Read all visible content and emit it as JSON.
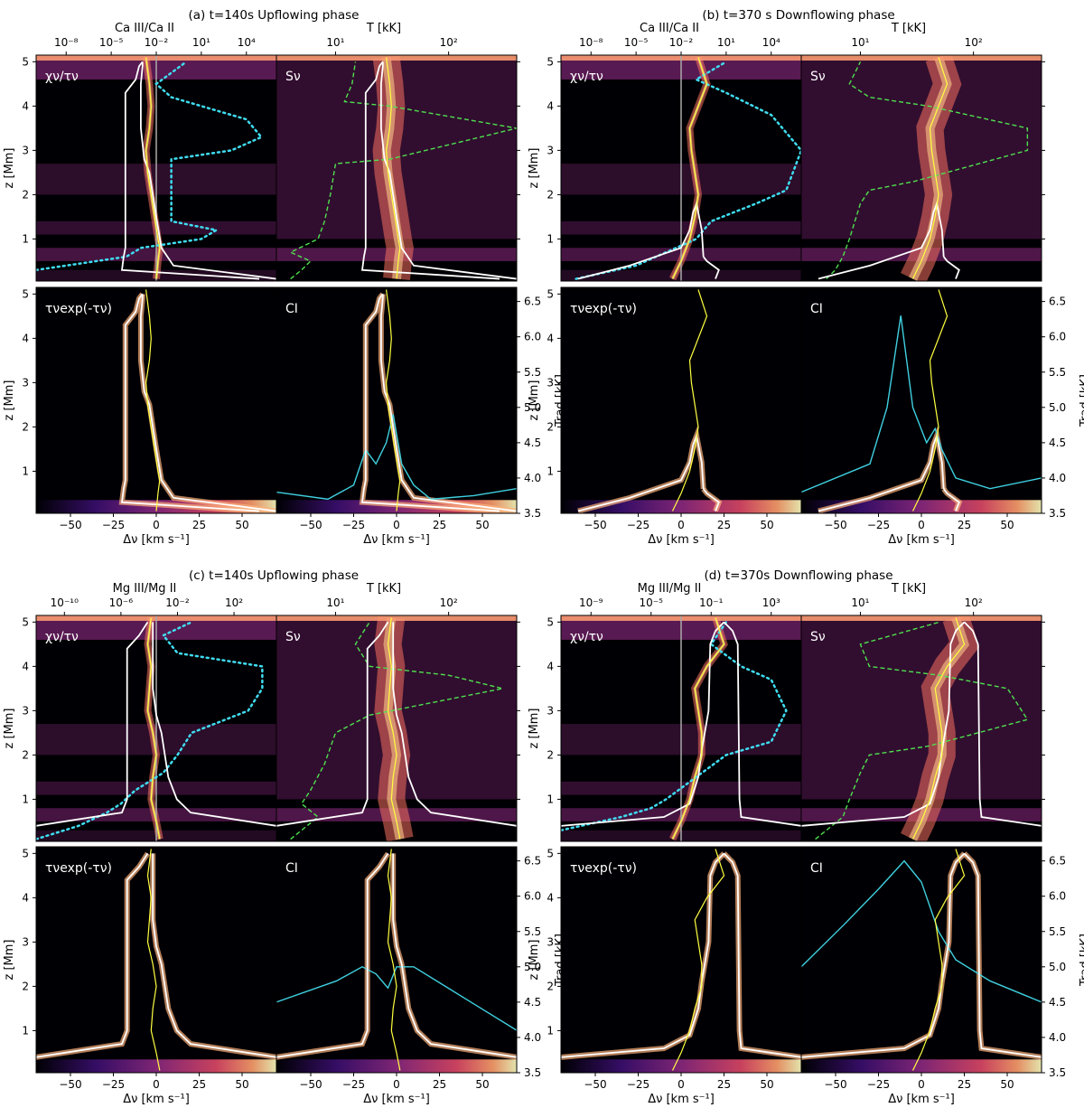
{
  "figure": {
    "blocks": [
      {
        "title": "(a) t=140s Upflowing phase",
        "ion_label": "Ca III/Ca II",
        "top_ticks": [
          "10⁻⁸",
          "10⁻⁵",
          "10⁻²",
          "10¹",
          "10⁴"
        ]
      },
      {
        "title": "(b) t=370 s Downflowing phase",
        "ion_label": "Ca III/Ca II",
        "top_ticks": [
          "10⁻⁸",
          "10⁻⁵",
          "10⁻²",
          "10¹",
          "10⁴"
        ]
      },
      {
        "title": "(c) t=140s Upflowing phase",
        "ion_label": "Mg III/Mg II",
        "top_ticks": [
          "10⁻¹⁰",
          "10⁻⁶",
          "10⁻²",
          "10²"
        ]
      },
      {
        "title": "(d) t=370s Downflowing phase",
        "ion_label": "Mg III/Mg II",
        "top_ticks": [
          "10⁻⁹",
          "10⁻⁵",
          "10⁻¹",
          "10³"
        ]
      }
    ],
    "panel_labels": [
      "χν/τν",
      "Sν",
      "τνexp(-τν)",
      "CI"
    ],
    "temp_label": "T [kK]",
    "temp_ticks": [
      "10¹",
      "10²"
    ],
    "ylabel": "z [Mm]",
    "xlabel": "Δν [km s⁻¹]",
    "trad_label": "Trad [kK]",
    "colors": {
      "velocity": "#ffff40",
      "tau_unity": "#ffffff",
      "temperature": "#4ee04e",
      "ion_ratio": "#3fdcf0",
      "line_profile": "#3fd0e0",
      "map_dark": "#000004",
      "map_bright": "#fcfdbf"
    }
  },
  "chart_data": {
    "type": "heatmap",
    "x_axis": {
      "label": "Δν [km s⁻¹]",
      "range": [
        -70,
        70
      ],
      "ticks": [
        "−50",
        "−25",
        "0",
        "25",
        "50"
      ],
      "tick_values": [
        -50,
        -25,
        0,
        25,
        50
      ]
    },
    "y_axis": {
      "label": "z [Mm]",
      "range": [
        0.05,
        5.15
      ],
      "ticks": [
        "1",
        "2",
        "3",
        "4",
        "5"
      ],
      "tick_values": [
        1,
        2,
        3,
        4,
        5
      ]
    },
    "trad_axis": {
      "label": "Trad [kK]",
      "range": [
        3.5,
        6.7
      ],
      "ticks": [
        "3.5",
        "4.0",
        "4.5",
        "5.0",
        "5.5",
        "6.0",
        "6.5"
      ],
      "tick_values": [
        3.5,
        4.0,
        4.5,
        5.0,
        5.5,
        6.0,
        6.5
      ]
    },
    "temp_axis": {
      "label": "T [kK]",
      "scale": "log",
      "range": [
        3,
        400
      ],
      "tick_values": [
        10,
        100
      ]
    },
    "blocks": [
      {
        "id": "a",
        "ion_ratio_range_log10": [
          -10,
          6
        ],
        "ion_tick_values_log10": [
          -8,
          -5,
          -2,
          1,
          4
        ],
        "velocity": [
          [
            0.1,
            0
          ],
          [
            0.5,
            1
          ],
          [
            0.8,
            2
          ],
          [
            1.0,
            1
          ],
          [
            1.5,
            -1
          ],
          [
            2.0,
            -3
          ],
          [
            2.5,
            -5
          ],
          [
            3.0,
            -6
          ],
          [
            3.5,
            -4
          ],
          [
            4.0,
            -3
          ],
          [
            4.5,
            -4
          ],
          [
            5.1,
            -6
          ]
        ],
        "tau_unity_left": [
          [
            0.1,
            60
          ],
          [
            0.3,
            -20
          ],
          [
            0.6,
            -19
          ],
          [
            0.8,
            -18
          ],
          [
            2.7,
            -18
          ],
          [
            4.3,
            -18
          ],
          [
            4.6,
            -12
          ],
          [
            4.9,
            -10
          ],
          [
            5.0,
            -8
          ]
        ],
        "tau_unity_right": [
          [
            0.1,
            70
          ],
          [
            0.4,
            10
          ],
          [
            0.8,
            3
          ],
          [
            1.5,
            0
          ],
          [
            2.5,
            -4
          ],
          [
            2.8,
            -7
          ],
          [
            3.5,
            -9
          ],
          [
            4.5,
            -9
          ],
          [
            4.9,
            -8
          ],
          [
            5.0,
            -8
          ]
        ],
        "temperature_kk": [
          [
            0.1,
            4
          ],
          [
            0.3,
            5
          ],
          [
            0.5,
            6
          ],
          [
            0.7,
            4
          ],
          [
            1.0,
            7
          ],
          [
            1.4,
            8
          ],
          [
            2.0,
            9
          ],
          [
            2.7,
            10
          ],
          [
            2.8,
            30
          ],
          [
            3.5,
            400
          ],
          [
            4.0,
            30
          ],
          [
            4.1,
            12
          ],
          [
            4.5,
            14
          ],
          [
            5.0,
            15
          ]
        ],
        "ion_ratio_log10": [
          [
            0.3,
            -10
          ],
          [
            0.6,
            -4
          ],
          [
            0.8,
            -3
          ],
          [
            1.0,
            1
          ],
          [
            1.2,
            2
          ],
          [
            1.4,
            -1
          ],
          [
            2.0,
            -1
          ],
          [
            2.8,
            -1
          ],
          [
            3.0,
            3
          ],
          [
            3.3,
            5
          ],
          [
            3.7,
            4
          ],
          [
            4.2,
            -1
          ],
          [
            4.5,
            -2
          ],
          [
            5.0,
            0
          ]
        ],
        "profile": [
          [
            -70,
            3.8
          ],
          [
            -40,
            3.7
          ],
          [
            -25,
            3.9
          ],
          [
            -18,
            4.4
          ],
          [
            -12,
            4.2
          ],
          [
            -6,
            4.5
          ],
          [
            -2,
            4.9
          ],
          [
            3,
            4.2
          ],
          [
            10,
            3.9
          ],
          [
            20,
            3.7
          ],
          [
            45,
            3.75
          ],
          [
            70,
            3.85
          ]
        ]
      },
      {
        "id": "b",
        "ion_ratio_range_log10": [
          -10,
          6
        ],
        "ion_tick_values_log10": [
          -8,
          -5,
          -2,
          1,
          4
        ],
        "velocity": [
          [
            0.1,
            -5
          ],
          [
            0.5,
            0
          ],
          [
            1.0,
            5
          ],
          [
            1.5,
            8
          ],
          [
            2.0,
            10
          ],
          [
            2.5,
            8
          ],
          [
            3.0,
            6
          ],
          [
            3.5,
            5
          ],
          [
            4.0,
            10
          ],
          [
            4.5,
            15
          ],
          [
            5.1,
            10
          ]
        ],
        "tau_unity_left": [
          [
            0.1,
            -60
          ],
          [
            0.4,
            -30
          ],
          [
            0.6,
            -15
          ],
          [
            0.8,
            0
          ],
          [
            1.2,
            5
          ],
          [
            1.6,
            7
          ],
          [
            1.8,
            9
          ],
          [
            1.2,
            12
          ],
          [
            0.6,
            13
          ]
        ],
        "tau_unity_right": [
          [
            0.1,
            20
          ],
          [
            0.3,
            22
          ],
          [
            0.5,
            15
          ],
          [
            0.6,
            13
          ]
        ],
        "temperature_kk": [
          [
            0.1,
            5
          ],
          [
            0.3,
            6
          ],
          [
            0.6,
            7
          ],
          [
            1.0,
            8
          ],
          [
            1.8,
            10
          ],
          [
            2.1,
            12
          ],
          [
            2.3,
            30
          ],
          [
            3.0,
            300
          ],
          [
            3.5,
            300
          ],
          [
            4.0,
            40
          ],
          [
            4.2,
            12
          ],
          [
            4.5,
            8
          ],
          [
            5.0,
            10
          ]
        ],
        "ion_ratio_log10": [
          [
            0.1,
            -9
          ],
          [
            0.4,
            -5
          ],
          [
            0.7,
            -3
          ],
          [
            1.0,
            -1
          ],
          [
            1.4,
            0
          ],
          [
            1.8,
            3
          ],
          [
            2.1,
            5
          ],
          [
            3.0,
            6
          ],
          [
            3.8,
            4
          ],
          [
            4.3,
            1
          ],
          [
            4.6,
            -1
          ],
          [
            5.0,
            1
          ]
        ],
        "profile": [
          [
            -70,
            3.8
          ],
          [
            -30,
            4.2
          ],
          [
            -20,
            5.0
          ],
          [
            -12,
            6.3
          ],
          [
            -5,
            5.0
          ],
          [
            3,
            4.5
          ],
          [
            8,
            4.7
          ],
          [
            12,
            4.4
          ],
          [
            20,
            4.0
          ],
          [
            40,
            3.85
          ],
          [
            70,
            4.0
          ]
        ]
      },
      {
        "id": "c",
        "ion_ratio_range_log10": [
          -12,
          5
        ],
        "ion_tick_values_log10": [
          -10,
          -6,
          -2,
          2
        ],
        "velocity": [
          [
            0.1,
            2
          ],
          [
            0.5,
            0
          ],
          [
            1.0,
            -3
          ],
          [
            1.5,
            -2
          ],
          [
            2.0,
            0
          ],
          [
            2.5,
            -2
          ],
          [
            3.0,
            -5
          ],
          [
            3.5,
            -4
          ],
          [
            4.0,
            -3
          ],
          [
            4.5,
            -5
          ],
          [
            5.1,
            -3
          ]
        ],
        "tau_unity_left": [
          [
            0.4,
            -70
          ],
          [
            0.7,
            -20
          ],
          [
            1.0,
            -17
          ],
          [
            4.4,
            -17
          ],
          [
            4.7,
            -10
          ],
          [
            5.0,
            -5
          ]
        ],
        "tau_unity_right": [
          [
            0.4,
            70
          ],
          [
            0.7,
            20
          ],
          [
            1.0,
            12
          ],
          [
            1.5,
            7
          ],
          [
            2.5,
            3
          ],
          [
            2.9,
            0
          ],
          [
            3.5,
            -2
          ],
          [
            5.0,
            -2
          ]
        ],
        "temperature_kk": [
          [
            0.1,
            4
          ],
          [
            0.3,
            5
          ],
          [
            0.6,
            7
          ],
          [
            0.9,
            5
          ],
          [
            1.2,
            6
          ],
          [
            1.8,
            8
          ],
          [
            2.5,
            10
          ],
          [
            2.9,
            20
          ],
          [
            3.5,
            300
          ],
          [
            3.8,
            100
          ],
          [
            4.0,
            20
          ],
          [
            4.5,
            15
          ],
          [
            5.0,
            20
          ]
        ],
        "ion_ratio_log10": [
          [
            0.1,
            -12
          ],
          [
            0.4,
            -9
          ],
          [
            0.7,
            -7
          ],
          [
            0.9,
            -6
          ],
          [
            1.2,
            -5
          ],
          [
            1.6,
            -3
          ],
          [
            2.0,
            -2
          ],
          [
            2.5,
            -1
          ],
          [
            3.0,
            3
          ],
          [
            3.5,
            4
          ],
          [
            4.0,
            4
          ],
          [
            4.3,
            -2
          ],
          [
            4.7,
            -3
          ],
          [
            5.0,
            -1
          ]
        ],
        "profile": [
          [
            -70,
            4.5
          ],
          [
            -35,
            4.8
          ],
          [
            -20,
            5.0
          ],
          [
            -12,
            4.9
          ],
          [
            -5,
            4.7
          ],
          [
            0,
            5.0
          ],
          [
            10,
            5.0
          ],
          [
            30,
            4.7
          ],
          [
            50,
            4.4
          ],
          [
            70,
            4.1
          ]
        ]
      },
      {
        "id": "d",
        "ion_ratio_range_log10": [
          -11,
          5
        ],
        "ion_tick_values_log10": [
          -9,
          -5,
          -1,
          3
        ],
        "velocity": [
          [
            0.1,
            -5
          ],
          [
            0.5,
            0
          ],
          [
            1.0,
            5
          ],
          [
            1.5,
            8
          ],
          [
            2.0,
            12
          ],
          [
            2.5,
            12
          ],
          [
            3.0,
            10
          ],
          [
            3.5,
            8
          ],
          [
            4.0,
            15
          ],
          [
            4.5,
            25
          ],
          [
            5.1,
            20
          ]
        ],
        "tau_unity_left": [
          [
            0.4,
            -70
          ],
          [
            0.6,
            -10
          ],
          [
            0.9,
            5
          ],
          [
            1.5,
            10
          ],
          [
            2.1,
            12
          ],
          [
            3.0,
            16
          ],
          [
            4.5,
            17
          ],
          [
            4.8,
            20
          ],
          [
            5.0,
            25
          ]
        ],
        "tau_unity_right": [
          [
            0.4,
            70
          ],
          [
            0.6,
            35
          ],
          [
            1.0,
            34
          ],
          [
            4.5,
            33
          ],
          [
            4.8,
            30
          ],
          [
            5.0,
            25
          ]
        ],
        "temperature_kk": [
          [
            0.1,
            4
          ],
          [
            0.3,
            5
          ],
          [
            0.6,
            7
          ],
          [
            1.0,
            8
          ],
          [
            1.6,
            10
          ],
          [
            2.0,
            12
          ],
          [
            2.2,
            40
          ],
          [
            2.8,
            300
          ],
          [
            3.5,
            200
          ],
          [
            3.8,
            50
          ],
          [
            4.0,
            12
          ],
          [
            4.5,
            10
          ],
          [
            5.0,
            50
          ]
        ],
        "ion_ratio_log10": [
          [
            0.3,
            -11
          ],
          [
            0.6,
            -7
          ],
          [
            0.8,
            -5
          ],
          [
            1.0,
            -4
          ],
          [
            1.5,
            -2
          ],
          [
            2.0,
            0
          ],
          [
            2.3,
            3
          ],
          [
            3.0,
            4
          ],
          [
            3.7,
            3
          ],
          [
            4.0,
            1
          ],
          [
            4.5,
            -1
          ],
          [
            5.0,
            0
          ]
        ],
        "profile": [
          [
            -70,
            5.0
          ],
          [
            -45,
            5.6
          ],
          [
            -25,
            6.1
          ],
          [
            -10,
            6.5
          ],
          [
            0,
            6.2
          ],
          [
            10,
            5.5
          ],
          [
            20,
            5.1
          ],
          [
            40,
            4.8
          ],
          [
            60,
            4.6
          ],
          [
            70,
            4.5
          ]
        ]
      }
    ]
  }
}
